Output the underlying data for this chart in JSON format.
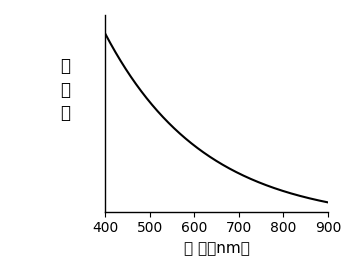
{
  "x_min": 400,
  "x_max": 900,
  "x_ticks": [
    400,
    500,
    600,
    700,
    800,
    900
  ],
  "y_label_chars": [
    "吸",
    "光",
    "度"
  ],
  "x_label": "波 长（nm）",
  "line_color": "#000000",
  "line_width": 1.5,
  "background_color": "#ffffff",
  "curve_a": 3.5,
  "curve_b": 0.0045,
  "curve_c": 0.05,
  "y_min": 0.0,
  "y_max": 1.05,
  "figsize": [
    3.56,
    2.71
  ],
  "dpi": 100
}
